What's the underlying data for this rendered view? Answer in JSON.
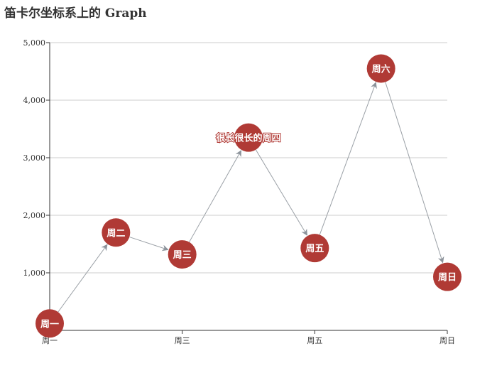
{
  "chart_data": {
    "type": "graph",
    "title": "笛卡尔坐标系上的 Graph",
    "x_categories": [
      "周一",
      "周二",
      "周三",
      "周四",
      "周五",
      "周六",
      "周日"
    ],
    "x_tick_labels_shown": [
      "周一",
      "周三",
      "周五",
      "周日"
    ],
    "ylim": [
      0,
      5000
    ],
    "y_ticks": [
      1000,
      2000,
      3000,
      4000,
      5000
    ],
    "y_tick_labels": [
      "1,000",
      "2,000",
      "3,000",
      "4,000",
      "5,000"
    ],
    "grid": true,
    "node_color": "#b03a35",
    "edge_color": "#9aa0a6",
    "nodes": [
      {
        "name": "周一",
        "value": 120
      },
      {
        "name": "周二",
        "value": 1700
      },
      {
        "name": "周三",
        "value": 1320
      },
      {
        "name": "很长很长的周四",
        "value": 3350
      },
      {
        "name": "周五",
        "value": 1430
      },
      {
        "name": "周六",
        "value": 4550
      },
      {
        "name": "周日",
        "value": 930
      }
    ],
    "edges": [
      {
        "source": 0,
        "target": 1
      },
      {
        "source": 1,
        "target": 2
      },
      {
        "source": 2,
        "target": 3
      },
      {
        "source": 3,
        "target": 4
      },
      {
        "source": 4,
        "target": 5
      },
      {
        "source": 5,
        "target": 6
      }
    ]
  }
}
